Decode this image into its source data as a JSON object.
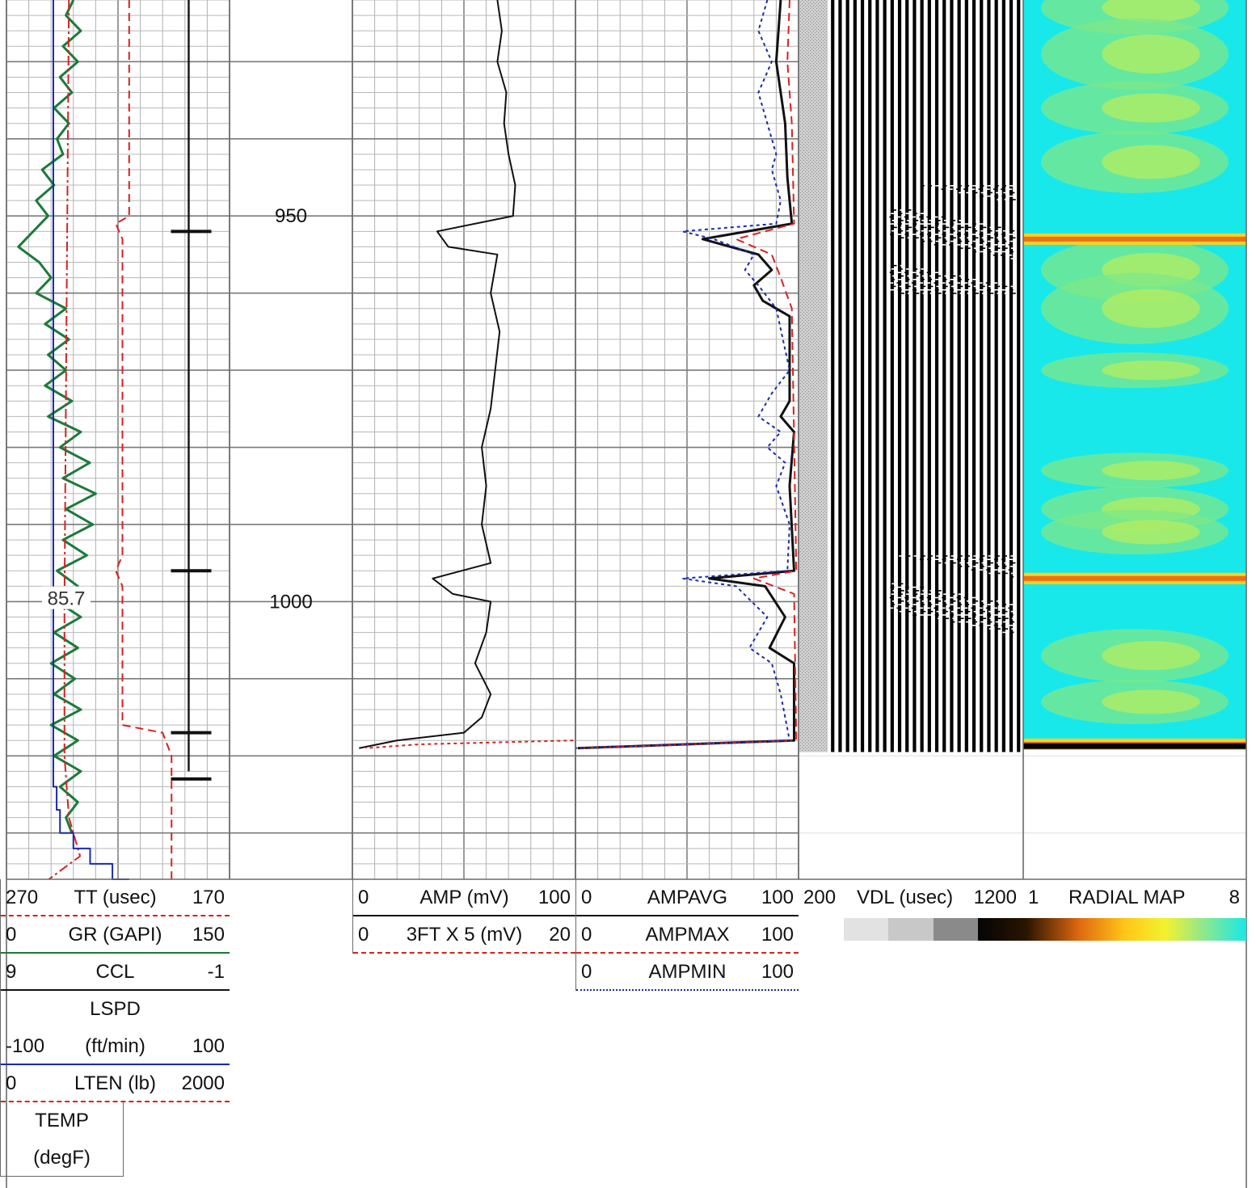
{
  "depth": {
    "labels": [
      "950",
      "1000"
    ],
    "marker_value": "85.7"
  },
  "header": {
    "track1": [
      {
        "left": "270",
        "name": "TT (usec)",
        "right": "170",
        "color": "#d62222"
      },
      {
        "left": "0",
        "name": "GR (GAPI)",
        "right": "150",
        "color": "#1c7a3a"
      },
      {
        "left": "9",
        "name": "CCL",
        "right": "-1",
        "color": "#111111"
      },
      {
        "left": "",
        "name": "LSPD",
        "right": "",
        "color": ""
      },
      {
        "left": "-100",
        "name": "(ft/min)",
        "right": "100",
        "color": "#1a2aa8"
      },
      {
        "left": "0",
        "name": "LTEN (lb)",
        "right": "2000",
        "color": "#d62222"
      },
      {
        "left": "",
        "name": "TEMP",
        "right": "",
        "color": ""
      },
      {
        "left": "",
        "name": "(degF)",
        "right": "",
        "color": ""
      }
    ],
    "track3": [
      {
        "left": "0",
        "name": "AMP (mV)",
        "right": "100",
        "color": "#111111"
      },
      {
        "left": "0",
        "name": "3FT X 5 (mV)",
        "right": "20",
        "color": "#d62222"
      }
    ],
    "track4": [
      {
        "left": "0",
        "name": "AMPAVG",
        "right": "100",
        "color": "#111111"
      },
      {
        "left": "0",
        "name": "AMPMAX",
        "right": "100",
        "color": "#d62222"
      },
      {
        "left": "0",
        "name": "AMPMIN",
        "right": "100",
        "color": "#1a2aa8"
      }
    ],
    "track5": {
      "left": "200",
      "name": "VDL (usec)",
      "right": "1200"
    },
    "track6": {
      "left": "1",
      "name": "RADIAL MAP",
      "right": "8"
    }
  },
  "chart_data": {
    "type": "line",
    "depth_range": [
      922,
      1036
    ],
    "depth_unit": "ft",
    "curves": [
      {
        "name": "TT (usec)",
        "scale": [
          270,
          170
        ],
        "color": "#d62222",
        "style": "dash",
        "points": [
          [
            922,
            215
          ],
          [
            950,
            215
          ],
          [
            951,
            221
          ],
          [
            953,
            218
          ],
          [
            994,
            218
          ],
          [
            996,
            221
          ],
          [
            998,
            218
          ],
          [
            1016,
            218
          ],
          [
            1017,
            200
          ],
          [
            1020,
            196
          ],
          [
            1036,
            196
          ]
        ]
      },
      {
        "name": "GR (GAPI)",
        "scale": [
          0,
          150
        ],
        "color": "#1c7a3a",
        "style": "solid",
        "points": [
          [
            922,
            45
          ],
          [
            924,
            40
          ],
          [
            926,
            50
          ],
          [
            928,
            38
          ],
          [
            930,
            48
          ],
          [
            932,
            36
          ],
          [
            934,
            44
          ],
          [
            936,
            32
          ],
          [
            938,
            42
          ],
          [
            940,
            34
          ],
          [
            942,
            38
          ],
          [
            944,
            24
          ],
          [
            946,
            32
          ],
          [
            948,
            20
          ],
          [
            950,
            28
          ],
          [
            952,
            18
          ],
          [
            954,
            8
          ],
          [
            956,
            22
          ],
          [
            958,
            30
          ],
          [
            960,
            20
          ],
          [
            962,
            40
          ],
          [
            964,
            26
          ],
          [
            966,
            42
          ],
          [
            968,
            28
          ],
          [
            970,
            40
          ],
          [
            972,
            26
          ],
          [
            974,
            44
          ],
          [
            976,
            28
          ],
          [
            978,
            50
          ],
          [
            980,
            36
          ],
          [
            982,
            56
          ],
          [
            984,
            38
          ],
          [
            986,
            60
          ],
          [
            988,
            40
          ],
          [
            990,
            58
          ],
          [
            992,
            38
          ],
          [
            994,
            54
          ],
          [
            996,
            34
          ],
          [
            998,
            48
          ],
          [
            1000,
            34
          ],
          [
            1002,
            50
          ],
          [
            1004,
            32
          ],
          [
            1006,
            48
          ],
          [
            1008,
            30
          ],
          [
            1010,
            46
          ],
          [
            1012,
            32
          ],
          [
            1014,
            50
          ],
          [
            1016,
            30
          ],
          [
            1018,
            48
          ],
          [
            1020,
            32
          ],
          [
            1022,
            50
          ],
          [
            1024,
            36
          ],
          [
            1026,
            48
          ],
          [
            1028,
            40
          ],
          [
            1030,
            44
          ]
        ]
      },
      {
        "name": "LTEN (lb)",
        "scale": [
          0,
          2000
        ],
        "color": "#d62222",
        "style": "dashdot",
        "points": [
          [
            922,
            560
          ],
          [
            960,
            540
          ],
          [
            1000,
            520
          ],
          [
            1020,
            520
          ],
          [
            1028,
            560
          ],
          [
            1033,
            660
          ],
          [
            1036,
            380
          ]
        ]
      },
      {
        "name": "LSPD (ft/min)",
        "scale": [
          -100,
          100
        ],
        "color": "#1a2aa8",
        "style": "step",
        "points": [
          [
            922,
            -58
          ],
          [
            1020,
            -58
          ],
          [
            1024,
            -55
          ],
          [
            1027,
            -52
          ],
          [
            1030,
            -40
          ],
          [
            1032,
            -25
          ],
          [
            1034,
            -5
          ],
          [
            1036,
            10
          ]
        ]
      },
      {
        "name": "AMP (mV)",
        "scale": [
          0,
          100
        ],
        "color": "#111111",
        "style": "solid",
        "points": [
          [
            922,
            65
          ],
          [
            926,
            67
          ],
          [
            930,
            65
          ],
          [
            934,
            69
          ],
          [
            938,
            68
          ],
          [
            942,
            70
          ],
          [
            946,
            73
          ],
          [
            950,
            72
          ],
          [
            952,
            38
          ],
          [
            954,
            43
          ],
          [
            955,
            65
          ],
          [
            960,
            62
          ],
          [
            965,
            66
          ],
          [
            970,
            64
          ],
          [
            975,
            62
          ],
          [
            980,
            58
          ],
          [
            985,
            60
          ],
          [
            990,
            58
          ],
          [
            995,
            62
          ],
          [
            997,
            36
          ],
          [
            999,
            45
          ],
          [
            1000,
            62
          ],
          [
            1004,
            60
          ],
          [
            1008,
            55
          ],
          [
            1012,
            62
          ],
          [
            1015,
            58
          ],
          [
            1017,
            50
          ],
          [
            1018,
            20
          ],
          [
            1019,
            3
          ]
        ]
      },
      {
        "name": "3FT X 5 (mV)",
        "scale": [
          0,
          20
        ],
        "color": "#d62222",
        "style": "dot",
        "points": [
          [
            1018,
            19.8
          ],
          [
            1018.5,
            6
          ],
          [
            1019,
            1.2
          ]
        ]
      },
      {
        "name": "AMPAVG",
        "scale": [
          0,
          100
        ],
        "color": "#111111",
        "style": "solid",
        "points": [
          [
            922,
            92
          ],
          [
            930,
            90
          ],
          [
            938,
            94
          ],
          [
            945,
            95
          ],
          [
            951,
            97
          ],
          [
            953,
            57
          ],
          [
            955,
            82
          ],
          [
            957,
            88
          ],
          [
            959,
            80
          ],
          [
            961,
            84
          ],
          [
            963,
            96
          ],
          [
            974,
            96
          ],
          [
            976,
            92
          ],
          [
            978,
            98
          ],
          [
            985,
            96
          ],
          [
            996,
            98
          ],
          [
            997,
            60
          ],
          [
            998,
            85
          ],
          [
            1002,
            94
          ],
          [
            1006,
            87
          ],
          [
            1008,
            98
          ],
          [
            1018,
            98
          ],
          [
            1019,
            1
          ]
        ]
      },
      {
        "name": "AMPMAX",
        "scale": [
          0,
          100
        ],
        "color": "#d62222",
        "style": "dash",
        "points": [
          [
            922,
            96
          ],
          [
            930,
            95
          ],
          [
            938,
            97
          ],
          [
            951,
            98
          ],
          [
            953,
            72
          ],
          [
            955,
            88
          ],
          [
            958,
            92
          ],
          [
            962,
            97
          ],
          [
            996,
            99
          ],
          [
            997,
            80
          ],
          [
            999,
            98
          ],
          [
            1018,
            99
          ],
          [
            1019,
            2
          ]
        ]
      },
      {
        "name": "AMPMIN",
        "scale": [
          0,
          100
        ],
        "color": "#1a2aa8",
        "style": "dot",
        "points": [
          [
            922,
            86
          ],
          [
            926,
            82
          ],
          [
            930,
            88
          ],
          [
            934,
            82
          ],
          [
            938,
            86
          ],
          [
            942,
            90
          ],
          [
            944,
            88
          ],
          [
            948,
            92
          ],
          [
            951,
            90
          ],
          [
            952,
            48
          ],
          [
            953,
            62
          ],
          [
            955,
            80
          ],
          [
            957,
            76
          ],
          [
            959,
            82
          ],
          [
            962,
            90
          ],
          [
            970,
            96
          ],
          [
            973,
            88
          ],
          [
            976,
            82
          ],
          [
            978,
            92
          ],
          [
            980,
            86
          ],
          [
            982,
            94
          ],
          [
            985,
            90
          ],
          [
            990,
            96
          ],
          [
            996,
            95
          ],
          [
            997,
            48
          ],
          [
            998,
            72
          ],
          [
            1002,
            86
          ],
          [
            1006,
            78
          ],
          [
            1008,
            88
          ],
          [
            1012,
            92
          ],
          [
            1018,
            96
          ],
          [
            1019,
            0
          ]
        ]
      },
      {
        "name": "CCL",
        "scale": [
          9,
          -1
        ],
        "color": "#111111",
        "style": "spikes",
        "points": [
          [
            952,
            1.7
          ],
          [
            996,
            1.7
          ],
          [
            1017,
            3.8
          ],
          [
            1023,
            3.8
          ]
        ]
      }
    ],
    "vdl": {
      "name": "VDL (usec)",
      "scale": [
        200,
        1200
      ],
      "depth_end": 1019.5,
      "gray_zone_usec": [
        200,
        330
      ]
    },
    "radial_map": {
      "name": "RADIAL MAP",
      "scale": [
        1,
        8
      ],
      "depth_end": 1019,
      "bright_bands_depth": [
        953,
        997,
        1018.5
      ]
    },
    "grid": true
  }
}
